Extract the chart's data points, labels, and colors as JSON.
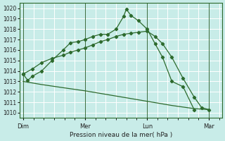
{
  "background_color": "#c8ece8",
  "grid_color": "#ffffff",
  "line_color": "#2d6a2d",
  "ylim": [
    1009.5,
    1020.5
  ],
  "yticks": [
    1010,
    1011,
    1012,
    1013,
    1014,
    1015,
    1016,
    1017,
    1018,
    1019,
    1020
  ],
  "xlabel": "Pression niveau de la mer( hPa )",
  "day_labels": [
    "Dim",
    "Mer",
    "Lun",
    "Mar"
  ],
  "day_positions": [
    0.0,
    0.333,
    0.667,
    1.0
  ],
  "vline_positions": [
    0.0,
    0.333,
    0.667,
    1.0
  ],
  "line1_x": [
    0.0,
    0.025,
    0.05,
    0.1,
    0.155,
    0.215,
    0.255,
    0.295,
    0.333,
    0.375,
    0.415,
    0.455,
    0.5,
    0.54,
    0.555,
    0.58,
    0.62,
    0.667,
    0.71,
    0.75,
    0.8,
    0.86,
    0.92
  ],
  "line1_y": [
    1013.7,
    1013.1,
    1013.5,
    1014.0,
    1015.0,
    1016.0,
    1016.7,
    1016.8,
    1017.0,
    1017.3,
    1017.5,
    1017.5,
    1018.0,
    1019.2,
    1019.9,
    1019.3,
    1018.8,
    1018.0,
    1016.6,
    1015.3,
    1013.0,
    1012.5,
    1010.3
  ],
  "line2_x": [
    0.0,
    0.05,
    0.1,
    0.155,
    0.215,
    0.255,
    0.295,
    0.333,
    0.375,
    0.415,
    0.455,
    0.5,
    0.54,
    0.58,
    0.62,
    0.667,
    0.71,
    0.75,
    0.8,
    0.86,
    0.92,
    0.96,
    1.0
  ],
  "line2_y": [
    1013.7,
    1014.2,
    1014.8,
    1015.2,
    1015.5,
    1015.8,
    1016.0,
    1016.2,
    1016.5,
    1016.8,
    1017.0,
    1017.3,
    1017.5,
    1017.6,
    1017.7,
    1017.8,
    1017.3,
    1016.6,
    1015.3,
    1013.3,
    1011.5,
    1010.5,
    1010.3
  ],
  "line3_x": [
    0.0,
    0.1,
    0.215,
    0.333,
    0.5,
    0.667,
    0.8,
    0.92,
    1.0
  ],
  "line3_y": [
    1013.0,
    1012.7,
    1012.4,
    1012.1,
    1011.6,
    1011.1,
    1010.7,
    1010.4,
    1010.3
  ]
}
